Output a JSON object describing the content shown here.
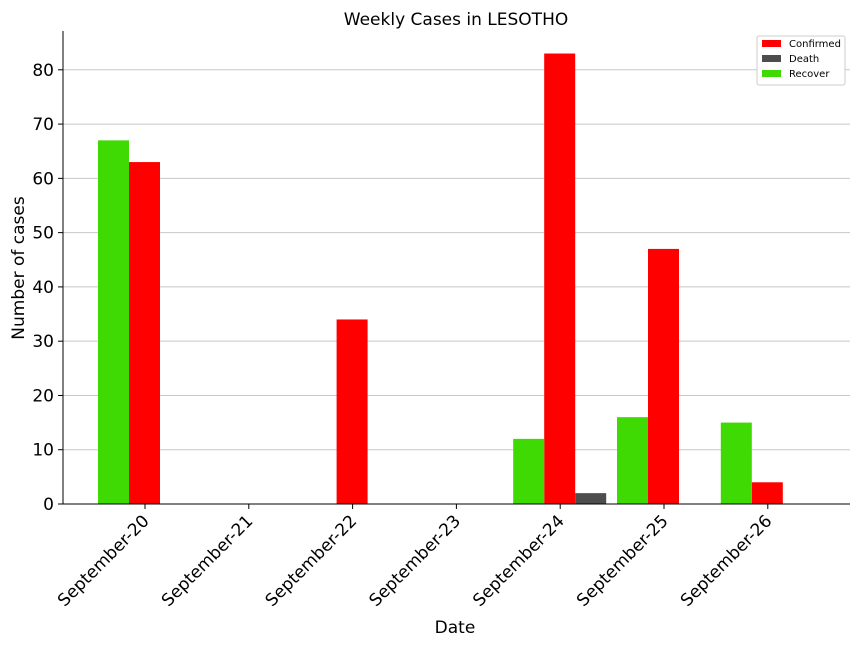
{
  "chart_data": {
    "type": "bar",
    "title": "Weekly Cases in LESOTHO",
    "xlabel": "Date",
    "ylabel": "Number of cases",
    "categories": [
      "September-20",
      "September-21",
      "September-22",
      "September-23",
      "September-24",
      "September-25",
      "September-26"
    ],
    "series": [
      {
        "name": "Confirmed",
        "color": "#ff0000",
        "values": [
          63,
          0,
          34,
          0,
          83,
          47,
          4
        ]
      },
      {
        "name": "Death",
        "color": "#4d4d4d",
        "values": [
          0,
          0,
          0,
          0,
          2,
          0,
          0
        ]
      },
      {
        "name": "Recover",
        "color": "#3fd904",
        "values": [
          67,
          0,
          0,
          0,
          12,
          16,
          15
        ]
      }
    ],
    "ylim": [
      0,
      87.15
    ],
    "yticks": [
      0,
      10,
      20,
      30,
      40,
      50,
      60,
      70,
      80
    ],
    "grid": "horizontal",
    "legend_position": "top-right"
  }
}
